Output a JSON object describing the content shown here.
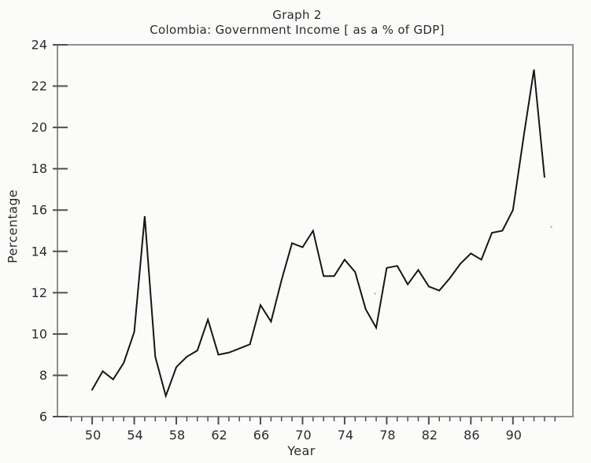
{
  "chart_data": {
    "type": "line",
    "title": "Graph 2",
    "subtitle": "Colombia: Government Income [ as a % of GDP]",
    "xlabel": "Year",
    "ylabel": "Percentage",
    "x": [
      1950,
      1951,
      1952,
      1953,
      1954,
      1955,
      1956,
      1957,
      1958,
      1959,
      1960,
      1961,
      1962,
      1963,
      1964,
      1965,
      1966,
      1967,
      1968,
      1969,
      1970,
      1971,
      1972,
      1973,
      1974,
      1975,
      1976,
      1977,
      1978,
      1979,
      1980,
      1981,
      1982,
      1983,
      1984,
      1985,
      1986,
      1987,
      1988,
      1989,
      1990,
      1991,
      1992,
      1993
    ],
    "series": [
      {
        "name": "Government income as % of GDP",
        "values": [
          7.3,
          8.2,
          7.8,
          8.6,
          10.1,
          15.7,
          8.9,
          7.0,
          8.4,
          8.9,
          9.2,
          10.7,
          9.0,
          9.1,
          9.3,
          9.5,
          11.4,
          10.6,
          12.6,
          14.4,
          14.2,
          15.0,
          12.8,
          12.8,
          13.6,
          13.0,
          11.2,
          10.3,
          13.2,
          13.3,
          12.4,
          13.1,
          12.3,
          12.1,
          12.7,
          13.4,
          13.9,
          13.6,
          14.9,
          15.0,
          16.0,
          19.5,
          22.8,
          17.6
        ]
      }
    ],
    "xlim": [
      1946.7,
      1995.7
    ],
    "ylim": [
      6,
      24
    ],
    "x_major_ticks": [
      {
        "value": 1950,
        "label": "50"
      },
      {
        "value": 1954,
        "label": "54"
      },
      {
        "value": 1958,
        "label": "58"
      },
      {
        "value": 1962,
        "label": "62"
      },
      {
        "value": 1966,
        "label": "66"
      },
      {
        "value": 1970,
        "label": "70"
      },
      {
        "value": 1974,
        "label": "74"
      },
      {
        "value": 1978,
        "label": "78"
      },
      {
        "value": 1982,
        "label": "82"
      },
      {
        "value": 1986,
        "label": "86"
      },
      {
        "value": 1990,
        "label": "90"
      }
    ],
    "x_minor_tick_range": [
      1948,
      1994
    ],
    "y_ticks": [
      {
        "value": 6,
        "label": "6"
      },
      {
        "value": 8,
        "label": "8"
      },
      {
        "value": 10,
        "label": "10"
      },
      {
        "value": 12,
        "label": "12"
      },
      {
        "value": 14,
        "label": "14"
      },
      {
        "value": 16,
        "label": "16"
      },
      {
        "value": 18,
        "label": "18"
      },
      {
        "value": 20,
        "label": "20"
      },
      {
        "value": 22,
        "label": "22"
      },
      {
        "value": 24,
        "label": "24"
      }
    ],
    "grid": false,
    "legend_position": "none",
    "colors": {
      "line": "#161616",
      "frame": "#8f8f8f",
      "tick": "#4f4f4f",
      "text": "#2b2b2b",
      "background": "#fbfbf9"
    }
  }
}
